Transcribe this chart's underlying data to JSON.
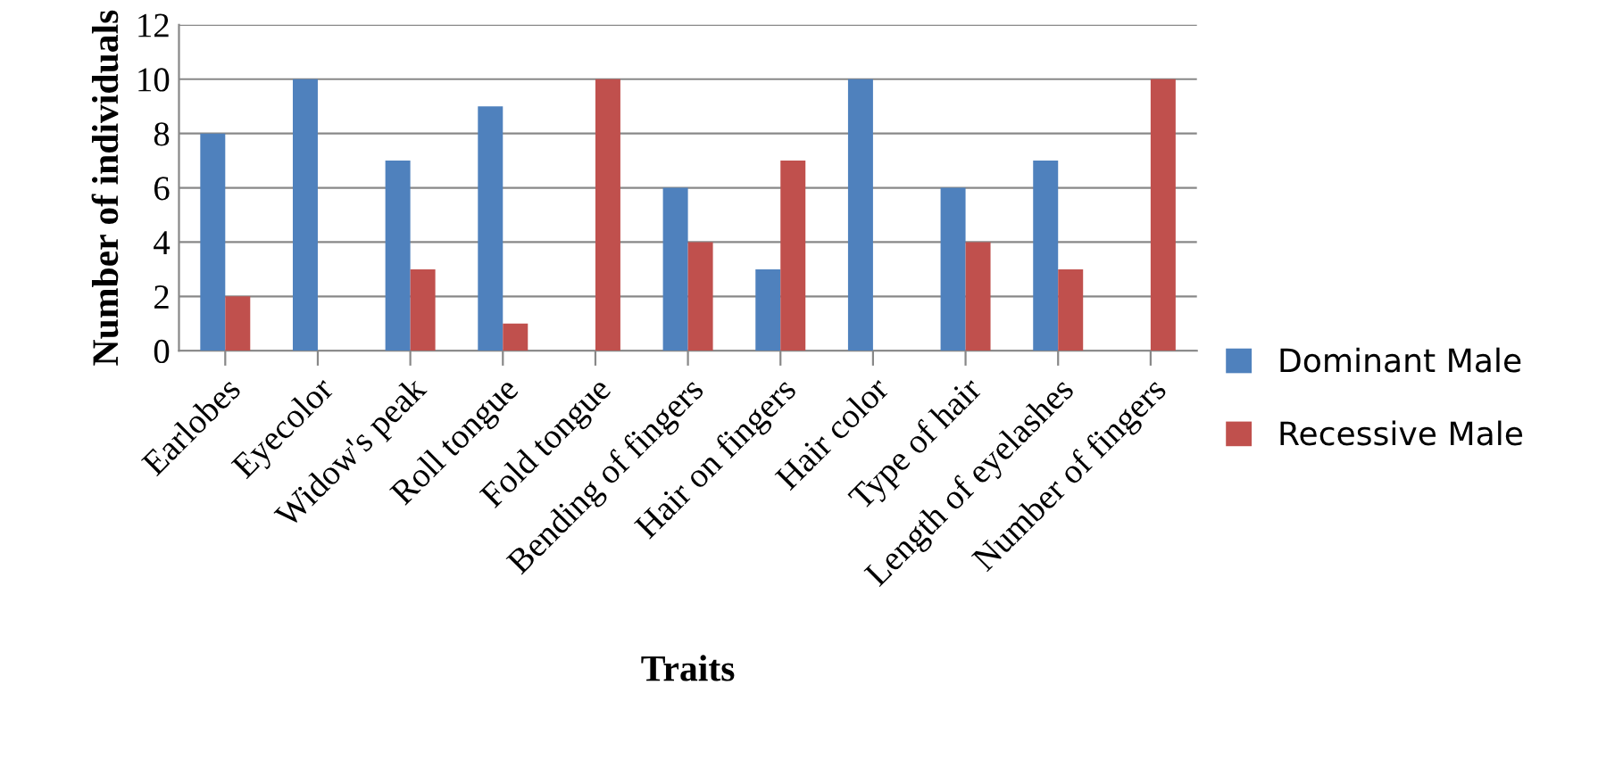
{
  "chart_data": {
    "type": "bar",
    "xlabel": "Traits",
    "ylabel": "Number of individuals",
    "categories": [
      "Earlobes",
      "Eyecolor",
      "Widow's peak",
      "Roll tongue",
      "Fold tongue",
      "Bending of fingers",
      "Hair on fingers",
      "Hair color",
      "Type of hair",
      "Length of eyelashes",
      "Number of fingers"
    ],
    "series": [
      {
        "name": "Dominant Male",
        "color": "#4f81bd",
        "values": [
          8,
          10,
          7,
          9,
          0,
          6,
          3,
          10,
          6,
          7,
          0
        ]
      },
      {
        "name": "Recessive Male",
        "color": "#c0504d",
        "values": [
          2,
          0,
          3,
          1,
          10,
          4,
          7,
          0,
          4,
          3,
          10
        ]
      }
    ],
    "ylim": [
      0,
      12
    ],
    "yticks": [
      0,
      2,
      4,
      6,
      8,
      10,
      12
    ],
    "grid": "y",
    "legend": "right"
  }
}
